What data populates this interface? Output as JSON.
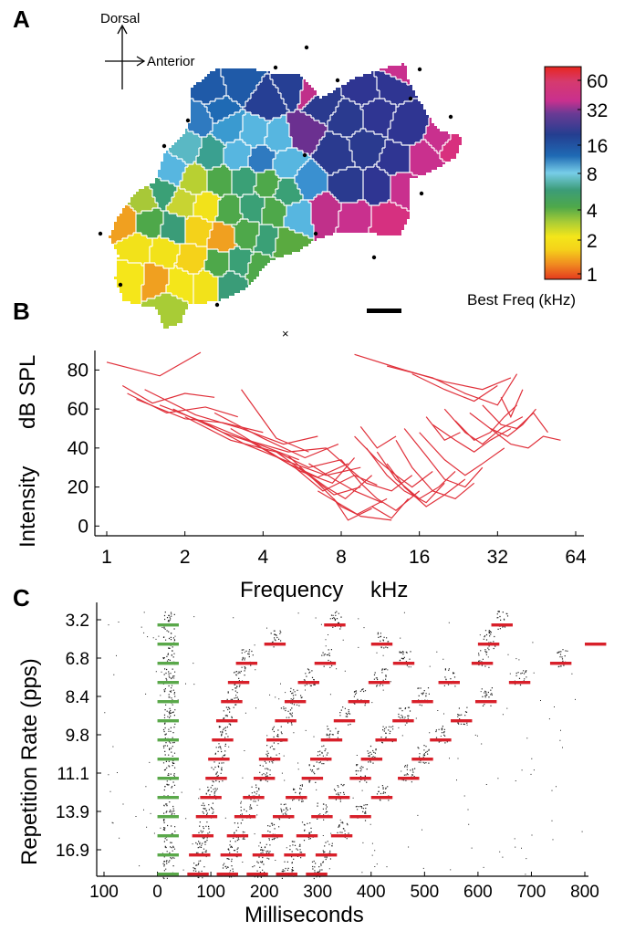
{
  "panels": {
    "a": "A",
    "b": "B",
    "c": "C"
  },
  "map": {
    "orientation": {
      "dorsal": "Dorsal",
      "anterior": "Anterior"
    },
    "colorbar": {
      "title": "Best Freq (kHz)",
      "ticks": [
        "60",
        "32",
        "16",
        "8",
        "4",
        "2",
        "1"
      ],
      "colors": [
        "#e8261e",
        "#d83a7a",
        "#c9308e",
        "#2f3a94",
        "#1f5aa8",
        "#57b6e0",
        "#3aa076",
        "#86c23a",
        "#f2e21a",
        "#f0a020",
        "#e53a1e"
      ]
    }
  },
  "chart_data": [
    {
      "panel": "B",
      "type": "line",
      "xlabel": "Frequency    kHz",
      "ylabel": "Intensity    dB SPL",
      "xscale": "log2",
      "xticks": [
        "1",
        "2",
        "4",
        "8",
        "16",
        "32",
        "64"
      ],
      "yticks": [
        "0",
        "20",
        "40",
        "60",
        "80"
      ],
      "xlim": [
        1,
        64
      ],
      "ylim": [
        -5,
        90
      ],
      "series_color": "#e0303a",
      "tuning_curves": [
        {
          "x": [
            1.0,
            1.6,
            2.3
          ],
          "y": [
            84,
            77,
            89
          ]
        },
        {
          "x": [
            1.15,
            1.5,
            2.0,
            2.6
          ],
          "y": [
            72,
            63,
            68,
            66
          ]
        },
        {
          "x": [
            1.2,
            1.7,
            2.4,
            3.2
          ],
          "y": [
            68,
            58,
            61,
            56
          ]
        },
        {
          "x": [
            1.3,
            2.0,
            2.8,
            4.0
          ],
          "y": [
            65,
            55,
            53,
            48
          ]
        },
        {
          "x": [
            1.4,
            2.2,
            3.3,
            4.8,
            6.5
          ],
          "y": [
            70,
            57,
            50,
            42,
            46
          ]
        },
        {
          "x": [
            1.6,
            2.5,
            3.5,
            5.0,
            7.0
          ],
          "y": [
            62,
            52,
            44,
            38,
            40
          ]
        },
        {
          "x": [
            1.8,
            2.8,
            4.0,
            5.5
          ],
          "y": [
            60,
            48,
            41,
            34
          ]
        },
        {
          "x": [
            2.0,
            3.0,
            4.5,
            6.0,
            8.0
          ],
          "y": [
            56,
            44,
            38,
            30,
            34
          ]
        },
        {
          "x": [
            2.3,
            3.4,
            5.0,
            7.0,
            9.5
          ],
          "y": [
            54,
            42,
            33,
            26,
            30
          ]
        },
        {
          "x": [
            2.6,
            4.0,
            5.8,
            7.8
          ],
          "y": [
            58,
            45,
            35,
            42
          ]
        },
        {
          "x": [
            3.0,
            4.2,
            5.6,
            7.4,
            9.0
          ],
          "y": [
            50,
            38,
            28,
            22,
            35
          ]
        },
        {
          "x": [
            3.5,
            5.0,
            6.5,
            8.5
          ],
          "y": [
            44,
            32,
            25,
            32
          ]
        },
        {
          "x": [
            4.0,
            5.3,
            6.8,
            9.0,
            11
          ],
          "y": [
            40,
            30,
            18,
            26,
            21
          ]
        },
        {
          "x": [
            4.5,
            6.0,
            7.5,
            9.5
          ],
          "y": [
            38,
            26,
            16,
            20
          ]
        },
        {
          "x": [
            5.0,
            6.5,
            8.0,
            9.2,
            12
          ],
          "y": [
            36,
            22,
            10,
            6,
            14
          ]
        },
        {
          "x": [
            3.3,
            4.5,
            6.0
          ],
          "y": [
            70,
            45,
            38
          ]
        },
        {
          "x": [
            5.5,
            7.0,
            8.3,
            10.5
          ],
          "y": [
            30,
            20,
            14,
            26
          ]
        },
        {
          "x": [
            6.0,
            7.5,
            9.0,
            11.5
          ],
          "y": [
            32,
            24,
            18,
            12
          ]
        },
        {
          "x": [
            7.0,
            8.5,
            10,
            12.5,
            15
          ],
          "y": [
            40,
            30,
            22,
            18,
            26
          ]
        },
        {
          "x": [
            8.0,
            9.5,
            11,
            13,
            16
          ],
          "y": [
            34,
            22,
            14,
            8,
            18
          ]
        },
        {
          "x": [
            9.0,
            11,
            13,
            15,
            18
          ],
          "y": [
            46,
            34,
            26,
            20,
            28
          ]
        },
        {
          "x": [
            10,
            12,
            14,
            17,
            20
          ],
          "y": [
            40,
            26,
            18,
            12,
            22
          ]
        },
        {
          "x": [
            11,
            13,
            16,
            19,
            22
          ],
          "y": [
            38,
            24,
            14,
            20,
            28
          ]
        },
        {
          "x": [
            12,
            14,
            17,
            20,
            24
          ],
          "y": [
            32,
            20,
            10,
            16,
            24
          ]
        },
        {
          "x": [
            13,
            15,
            18,
            22,
            26
          ],
          "y": [
            44,
            30,
            18,
            14,
            22
          ]
        },
        {
          "x": [
            14,
            17,
            20,
            24,
            28
          ],
          "y": [
            50,
            36,
            24,
            20,
            30
          ]
        },
        {
          "x": [
            9.5,
            11,
            13
          ],
          "y": [
            51,
            40,
            46
          ]
        },
        {
          "x": [
            16,
            20,
            24,
            28,
            34
          ],
          "y": [
            48,
            34,
            26,
            32,
            40
          ]
        },
        {
          "x": [
            18,
            22,
            26,
            30,
            36
          ],
          "y": [
            52,
            44,
            38,
            44,
            50
          ]
        },
        {
          "x": [
            20,
            24,
            28,
            33,
            40
          ],
          "y": [
            60,
            48,
            42,
            50,
            56
          ]
        },
        {
          "x": [
            22,
            26,
            30,
            34,
            38
          ],
          "y": [
            54,
            44,
            48,
            56,
            62
          ]
        },
        {
          "x": [
            25,
            30,
            35,
            40,
            45
          ],
          "y": [
            58,
            50,
            46,
            52,
            60
          ]
        },
        {
          "x": [
            28,
            33,
            38,
            44,
            50
          ],
          "y": [
            62,
            52,
            50,
            58,
            48
          ]
        },
        {
          "x": [
            30,
            36,
            42,
            48,
            56
          ],
          "y": [
            50,
            42,
            40,
            46,
            44
          ]
        },
        {
          "x": [
            33,
            36,
            40
          ],
          "y": [
            66,
            56,
            70
          ]
        },
        {
          "x": [
            9.0,
            14,
            20,
            28,
            36
          ],
          "y": [
            88,
            80,
            74,
            70,
            76
          ]
        },
        {
          "x": [
            12,
            18,
            24,
            32,
            38
          ],
          "y": [
            82,
            76,
            68,
            62,
            78
          ]
        },
        {
          "x": [
            15,
            20,
            26,
            32
          ],
          "y": [
            78,
            70,
            64,
            72
          ]
        },
        {
          "x": [
            6.5,
            9.5,
            12.5
          ],
          "y": [
            18,
            5,
            3
          ]
        },
        {
          "x": [
            7.5,
            8.5,
            10.5
          ],
          "y": [
            14,
            3,
            9
          ]
        },
        {
          "x": [
            17,
            20,
            23
          ],
          "y": [
            56,
            44,
            48
          ]
        },
        {
          "x": [
            10.5,
            12.5,
            14.5
          ],
          "y": [
            10,
            4,
            14
          ]
        }
      ]
    },
    {
      "panel": "C",
      "type": "scatter",
      "title": "",
      "xlabel": "Milliseconds",
      "ylabel": "Repetition Rate (pps)",
      "xticks": [
        "100",
        "0",
        "100",
        "200",
        "300",
        "400",
        "500",
        "600",
        "700",
        "800"
      ],
      "xlim": [
        -100,
        800
      ],
      "yticks": [
        "3.2",
        "6.8",
        "8.4",
        "9.8",
        "11.1",
        "13.9",
        "16.9"
      ],
      "stimulus_marker_colors": {
        "first": "#5aa84a",
        "subsequent": "#d8202a"
      },
      "stimulus_duration_ms": 40,
      "repetition_rates_pps": [
        3.2,
        5.0,
        6.8,
        7.6,
        8.4,
        9.1,
        9.8,
        10.5,
        11.1,
        12.5,
        13.9,
        15.4,
        16.9,
        18.0
      ],
      "stimulus_onsets_ms": [
        [
          0,
          312,
          625
        ],
        [
          0,
          200,
          400,
          600,
          800
        ],
        [
          0,
          147,
          294,
          441,
          588,
          735
        ],
        [
          0,
          132,
          263,
          395,
          526,
          658
        ],
        [
          0,
          119,
          238,
          357,
          476,
          595
        ],
        [
          0,
          110,
          220,
          330,
          440,
          549
        ],
        [
          0,
          102,
          204,
          306,
          408,
          510
        ],
        [
          0,
          95,
          190,
          286,
          381,
          476
        ],
        [
          0,
          90,
          180,
          270,
          360,
          450
        ],
        [
          0,
          80,
          160,
          240,
          320,
          400
        ],
        [
          0,
          72,
          144,
          216,
          288,
          360
        ],
        [
          0,
          65,
          130,
          195,
          260,
          325
        ],
        [
          0,
          59,
          118,
          178,
          237,
          296
        ],
        [
          0,
          56,
          111,
          167,
          222,
          278
        ]
      ]
    }
  ]
}
